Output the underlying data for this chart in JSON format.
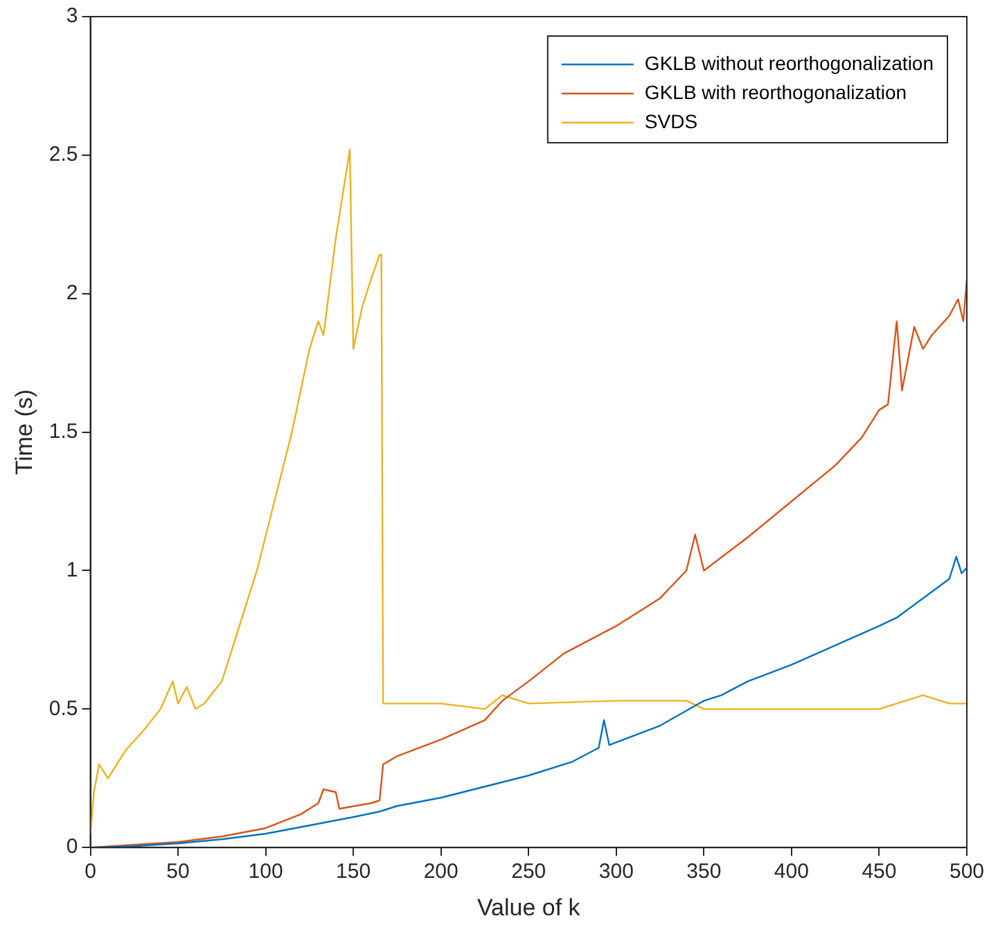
{
  "chart_data": {
    "type": "line",
    "xlabel": "Value of k",
    "ylabel": "Time (s)",
    "xlim": [
      0,
      500
    ],
    "xticks": [
      0,
      50,
      100,
      150,
      200,
      250,
      300,
      350,
      400,
      450,
      500
    ],
    "ylim": [
      0,
      3
    ],
    "yticks": [
      0,
      0.5,
      1,
      1.5,
      2,
      2.5,
      3
    ],
    "grid": false,
    "legend": "top right",
    "marker": "none",
    "line_style": "solid",
    "series": [
      {
        "name": "GKLB without reorthogonalization",
        "color": "#0072bd",
        "x": [
          0,
          25,
          50,
          75,
          100,
          125,
          150,
          165,
          175,
          200,
          225,
          250,
          275,
          290,
          293,
          296,
          300,
          325,
          350,
          360,
          375,
          400,
          425,
          450,
          460,
          475,
          490,
          494,
          497,
          500
        ],
        "values": [
          0,
          0.005,
          0.015,
          0.03,
          0.05,
          0.08,
          0.11,
          0.13,
          0.15,
          0.18,
          0.22,
          0.26,
          0.31,
          0.36,
          0.46,
          0.37,
          0.38,
          0.44,
          0.53,
          0.55,
          0.6,
          0.66,
          0.73,
          0.8,
          0.83,
          0.9,
          0.97,
          1.05,
          0.99,
          1.01
        ]
      },
      {
        "name": "GKLB with reorthogonalization",
        "color": "#d95319",
        "x": [
          0,
          50,
          75,
          100,
          120,
          130,
          133,
          140,
          142,
          160,
          165,
          167,
          175,
          200,
          225,
          235,
          250,
          270,
          300,
          325,
          340,
          345,
          350,
          375,
          400,
          425,
          440,
          450,
          455,
          460,
          463,
          470,
          475,
          480,
          490,
          495,
          498,
          500
        ],
        "values": [
          0,
          0.02,
          0.04,
          0.07,
          0.12,
          0.16,
          0.21,
          0.2,
          0.14,
          0.16,
          0.17,
          0.3,
          0.33,
          0.39,
          0.46,
          0.53,
          0.6,
          0.7,
          0.8,
          0.9,
          1,
          1.13,
          1,
          1.12,
          1.25,
          1.38,
          1.48,
          1.58,
          1.6,
          1.9,
          1.65,
          1.88,
          1.8,
          1.85,
          1.92,
          1.98,
          1.9,
          2.05
        ]
      },
      {
        "name": "SVDS",
        "color": "#edb120",
        "x": [
          0,
          2,
          5,
          10,
          15,
          20,
          30,
          40,
          47,
          50,
          55,
          60,
          65,
          75,
          85,
          95,
          105,
          115,
          125,
          130,
          133,
          140,
          145,
          148,
          150,
          155,
          160,
          165,
          166,
          167,
          175,
          200,
          225,
          235,
          250,
          300,
          340,
          350,
          400,
          450,
          475,
          490,
          500
        ],
        "values": [
          0.05,
          0.2,
          0.3,
          0.25,
          0.3,
          0.35,
          0.42,
          0.5,
          0.6,
          0.52,
          0.58,
          0.5,
          0.52,
          0.6,
          0.8,
          1,
          1.25,
          1.5,
          1.8,
          1.9,
          1.85,
          2.2,
          2.4,
          2.52,
          1.8,
          1.95,
          2.05,
          2.14,
          2.14,
          0.52,
          0.52,
          0.52,
          0.5,
          0.55,
          0.52,
          0.53,
          0.53,
          0.5,
          0.5,
          0.5,
          0.55,
          0.52,
          0.52
        ]
      }
    ]
  }
}
